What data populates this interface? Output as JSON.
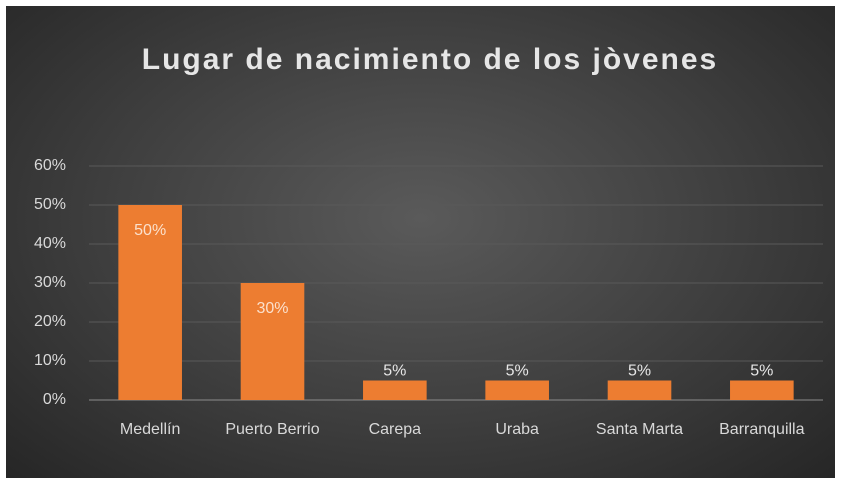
{
  "chart_data": {
    "type": "bar",
    "title": "Lugar de nacimiento  de los jòvenes",
    "categories": [
      "Medellín",
      "Puerto Berrio",
      "Carepa",
      "Uraba",
      "Santa Marta",
      "Barranquilla"
    ],
    "values": [
      50,
      30,
      5,
      5,
      5,
      5
    ],
    "value_labels": [
      "50%",
      "30%",
      "5%",
      "5%",
      "5%",
      "5%"
    ],
    "color": "#ed7d31",
    "ylim": [
      0,
      60
    ],
    "yticks": [
      {
        "value": 0,
        "label": "0%"
      },
      {
        "value": 10,
        "label": "10%"
      },
      {
        "value": 20,
        "label": "20%"
      },
      {
        "value": 30,
        "label": "30%"
      },
      {
        "value": 40,
        "label": "40%"
      },
      {
        "value": 50,
        "label": "50%"
      },
      {
        "value": 60,
        "label": "60%"
      }
    ],
    "grid": true
  }
}
